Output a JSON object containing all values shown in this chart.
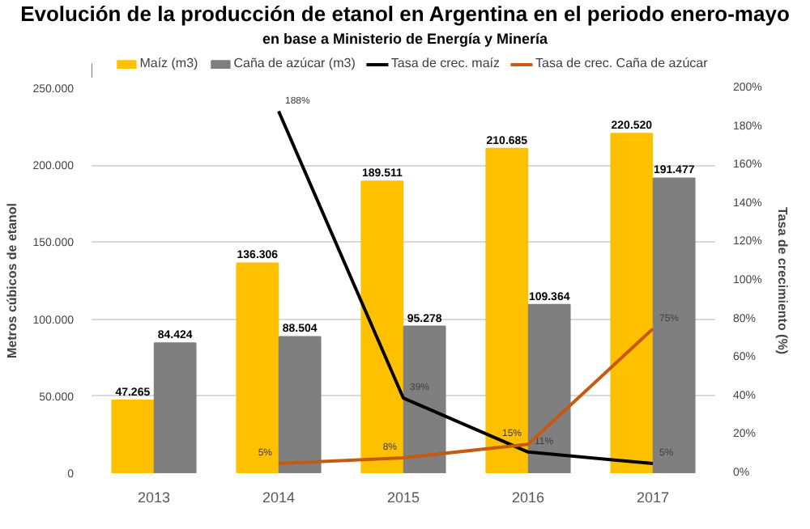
{
  "chart_data": {
    "type": "bar",
    "title": "Evolución de la producción de etanol en Argentina en el periodo enero-mayo",
    "subtitle": "en base a Ministerio de Energía y Minería",
    "ylabel": "Metros cúbicos de etanol",
    "y2label": "Tasa de crecimiento (%)",
    "categories": [
      "2013",
      "2014",
      "2015",
      "2016",
      "2017"
    ],
    "series": [
      {
        "name": "Maíz (m3)",
        "color": "#ffc000",
        "values": [
          47265,
          136306,
          189511,
          210685,
          220520
        ],
        "value_labels": [
          "47.265",
          "136.306",
          "189.511",
          "210.685",
          "220.520"
        ]
      },
      {
        "name": "Caña de azúcar (m3)",
        "color": "#7f7f7f",
        "values": [
          84424,
          88504,
          95278,
          109364,
          191477
        ],
        "value_labels": [
          "84.424",
          "88.504",
          "95.278",
          "109.364",
          "191.477"
        ]
      },
      {
        "name": "Tasa de crec. maíz",
        "type": "line",
        "axis": "y2",
        "color": "#000000",
        "values": [
          null,
          188,
          39,
          11,
          5
        ],
        "value_labels": [
          null,
          "188%",
          "39%",
          "11%",
          "5%"
        ]
      },
      {
        "name": "Tasa de crec. Caña de azúcar",
        "type": "line",
        "axis": "y2",
        "color": "#c55a11",
        "values": [
          null,
          5,
          8,
          15,
          75
        ],
        "value_labels": [
          null,
          "5%",
          "8%",
          "15%",
          "75%"
        ]
      }
    ],
    "ylim": [
      0,
      250000
    ],
    "yticks": [
      {
        "value": 0,
        "label": "0"
      },
      {
        "value": 50000,
        "label": "50.000"
      },
      {
        "value": 100000,
        "label": "100.000"
      },
      {
        "value": 150000,
        "label": "150.000"
      },
      {
        "value": 200000,
        "label": "200.000"
      },
      {
        "value": 250000,
        "label": "250.000"
      }
    ],
    "y2lim": [
      0,
      200
    ],
    "y2ticks": [
      {
        "value": 0,
        "label": "0%"
      },
      {
        "value": 20,
        "label": "20%"
      },
      {
        "value": 40,
        "label": "40%"
      },
      {
        "value": 60,
        "label": "60%"
      },
      {
        "value": 80,
        "label": "80%"
      },
      {
        "value": 100,
        "label": "100%"
      },
      {
        "value": 120,
        "label": "120%"
      },
      {
        "value": 140,
        "label": "140%"
      },
      {
        "value": 160,
        "label": "160%"
      },
      {
        "value": 180,
        "label": "180%"
      },
      {
        "value": 200,
        "label": "200%"
      }
    ],
    "grid": "y",
    "legend": "top"
  }
}
